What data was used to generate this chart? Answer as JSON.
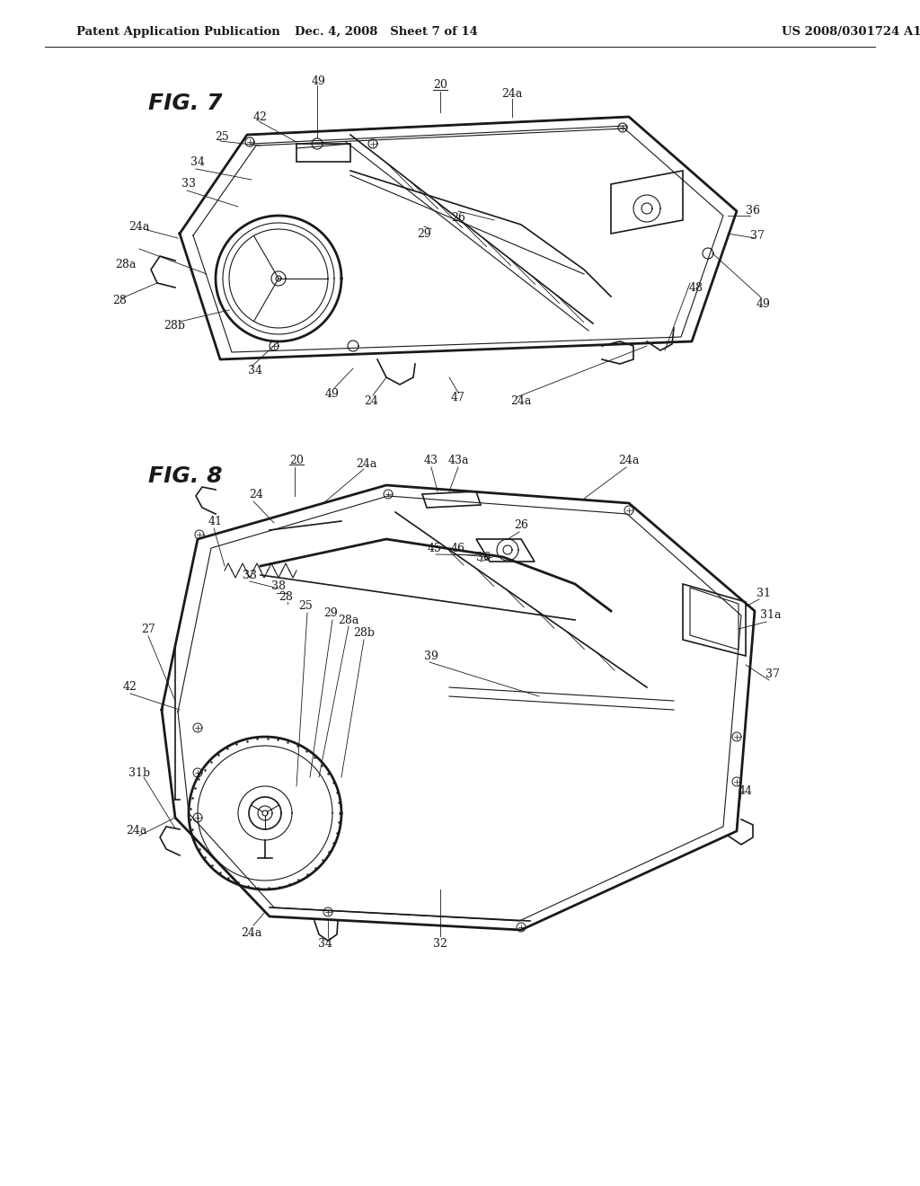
{
  "bg_color": "#ffffff",
  "header_left": "Patent Application Publication",
  "header_mid": "Dec. 4, 2008   Sheet 7 of 14",
  "header_right": "US 2008/0301724 A1",
  "fig7_label": "FIG. 7",
  "fig8_label": "FIG. 8",
  "line_color": "#1a1a1a",
  "text_color": "#1a1a1a",
  "header_font_size": 9.5,
  "fig_label_font_size": 18,
  "ref_font_size": 9,
  "page_width": 10.24,
  "page_height": 13.2
}
